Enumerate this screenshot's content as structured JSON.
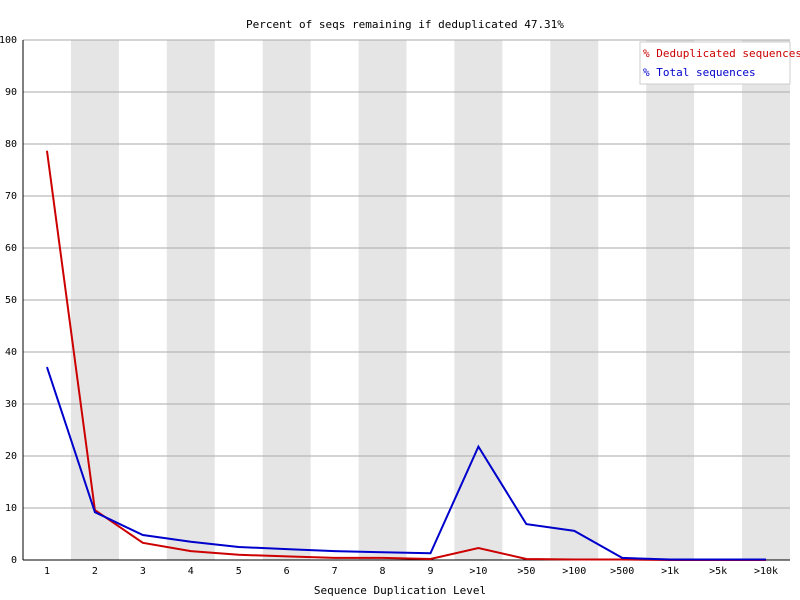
{
  "chart_data": {
    "type": "line",
    "title": "Percent of seqs remaining if deduplicated 47.31%",
    "x_label": "Sequence Duplication Level",
    "categories": [
      "1",
      "2",
      "3",
      "4",
      "5",
      "6",
      "7",
      "8",
      "9",
      ">10",
      ">50",
      ">100",
      ">500",
      ">1k",
      ">5k",
      ">10k"
    ],
    "series": [
      {
        "name": "% Deduplicated sequences",
        "color": "#cc0000",
        "values": [
          78.7,
          9.6,
          3.3,
          1.7,
          1.0,
          0.7,
          0.4,
          0.4,
          0.2,
          2.3,
          0.2,
          0.1,
          0.1,
          0,
          0,
          0
        ]
      },
      {
        "name": "% Total sequences",
        "color": "#0000cc",
        "values": [
          37.1,
          9.2,
          4.8,
          3.5,
          2.5,
          2.1,
          1.7,
          1.5,
          1.3,
          21.8,
          6.9,
          5.6,
          0.4,
          0.1,
          0.1,
          0.1
        ]
      }
    ],
    "ylim": [
      0,
      100
    ],
    "yticks": [
      0,
      10,
      20,
      30,
      40,
      50,
      60,
      70,
      80,
      90,
      100
    ],
    "grid": true,
    "legend": "top-right"
  }
}
